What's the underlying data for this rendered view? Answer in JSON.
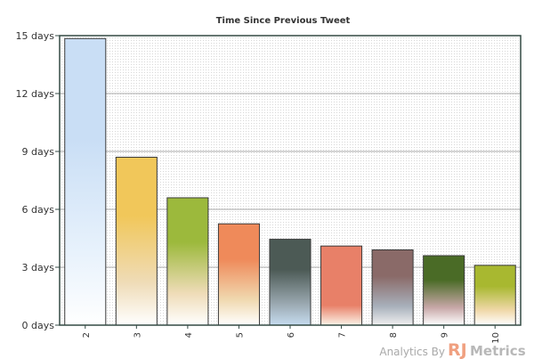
{
  "chart_data": {
    "type": "bar",
    "title": "Time Since Previous Tweet",
    "xlabel": "",
    "ylabel": "",
    "categories": [
      "2",
      "3",
      "4",
      "5",
      "6",
      "7",
      "8",
      "9",
      "10"
    ],
    "values": [
      14.85,
      8.7,
      6.6,
      5.25,
      4.45,
      4.1,
      3.9,
      3.6,
      3.1
    ],
    "unit": "days",
    "ylim": [
      0,
      15
    ],
    "yticks": [
      0,
      3,
      6,
      9,
      12,
      15
    ],
    "ytick_labels": [
      "0 days",
      "3 days",
      "6 days",
      "9 days",
      "12 days",
      "15 days"
    ],
    "grid": true,
    "legend": "none",
    "bar_colors": [
      [
        "#c9def5",
        "#e8f2fc",
        "#ffffff"
      ],
      [
        "#f1c75a",
        "#efdcb8",
        "#ffffff"
      ],
      [
        "#9cb93c",
        "#efdcb8",
        "#ffffff"
      ],
      [
        "#ef8a5a",
        "#f0d9b0",
        "#ffffff"
      ],
      [
        "#4c5a55",
        "#9aa8b0",
        "#c6dcf0"
      ],
      [
        "#e88068",
        "#e88068",
        "#fbf3e8"
      ],
      [
        "#8a6a68",
        "#a8b0bb",
        "#f0f0f0"
      ],
      [
        "#4a6b26",
        "#c8a8a8",
        "#ffffff"
      ],
      [
        "#a8b830",
        "#f0d8a8",
        "#ffffff"
      ]
    ]
  },
  "watermark": {
    "prefix": "Analytics By",
    "brand_rj": "RJ",
    "brand_metrics": "Metrics"
  }
}
